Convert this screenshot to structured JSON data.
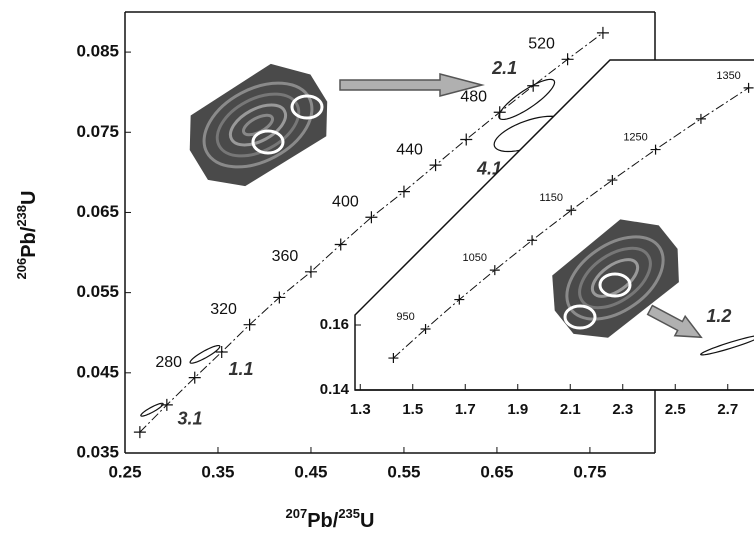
{
  "chart_data": [
    {
      "type": "concordia",
      "x_label": {
        "sup1": "207",
        "base1": "Pb/",
        "sup2": "235",
        "base2": "U"
      },
      "y_label": {
        "sup1": "206",
        "base1": "Pb/",
        "sup2": "238",
        "base2": "U"
      },
      "xlim": [
        0.25,
        0.82
      ],
      "ylim": [
        0.035,
        0.09
      ],
      "xticks": [
        0.25,
        0.35,
        0.45,
        0.55,
        0.65,
        0.75
      ],
      "yticks": [
        0.035,
        0.045,
        0.055,
        0.065,
        0.075,
        0.085
      ],
      "concordia": {
        "x": [
          0.266,
          0.295,
          0.325,
          0.354,
          0.384,
          0.416,
          0.45,
          0.482,
          0.515,
          0.55,
          0.584,
          0.617,
          0.653,
          0.689,
          0.726,
          0.764
        ],
        "y": [
          0.0376,
          0.041,
          0.0444,
          0.0476,
          0.051,
          0.0544,
          0.0576,
          0.061,
          0.0644,
          0.0676,
          0.0709,
          0.0741,
          0.0775,
          0.0808,
          0.0841,
          0.0874
        ],
        "age_labels": [
          null,
          null,
          280,
          null,
          320,
          null,
          360,
          null,
          400,
          null,
          440,
          null,
          480,
          null,
          520,
          null
        ]
      },
      "spots": [
        {
          "name": "3.1",
          "x": 0.279,
          "y": 0.0404,
          "x_err": 0.012,
          "y_err": 0.0008,
          "rho": 0.9
        },
        {
          "name": "1.1",
          "x": 0.336,
          "y": 0.0473,
          "x_err": 0.016,
          "y_err": 0.0011,
          "rho": 0.9
        },
        {
          "name": "2.1",
          "x": 0.682,
          "y": 0.0791,
          "x_err": 0.03,
          "y_err": 0.0025,
          "rho": 0.85
        },
        {
          "name": "4.1",
          "x": 0.685,
          "y": 0.0748,
          "x_err": 0.038,
          "y_err": 0.0022,
          "rho": 0.6
        }
      ]
    },
    {
      "type": "concordia",
      "xlim": [
        1.28,
        2.8
      ],
      "ylim": [
        0.14,
        0.24
      ],
      "xticks": [
        1.3,
        1.5,
        1.7,
        1.9,
        2.1,
        2.3,
        2.5,
        2.7
      ],
      "yticks": [
        0.14,
        0.16
      ],
      "concordia": {
        "x": [
          1.4263,
          1.54877,
          1.67739,
          1.81256,
          1.95456,
          2.10373,
          2.26041,
          2.42498,
          2.59782,
          2.77937
        ],
        "y": [
          0.14983,
          0.15878,
          0.16782,
          0.17688,
          0.18606,
          0.1953,
          0.2046,
          0.21398,
          0.22343,
          0.23296
        ],
        "age_labels": [
          null,
          950,
          null,
          1050,
          null,
          1150,
          null,
          1250,
          null,
          1350
        ]
      },
      "spots": [
        {
          "name": "1.2",
          "x": 2.712,
          "y": 0.1538,
          "x_err": 0.115,
          "y_err": 0.003,
          "rho": 0.95
        }
      ]
    }
  ]
}
